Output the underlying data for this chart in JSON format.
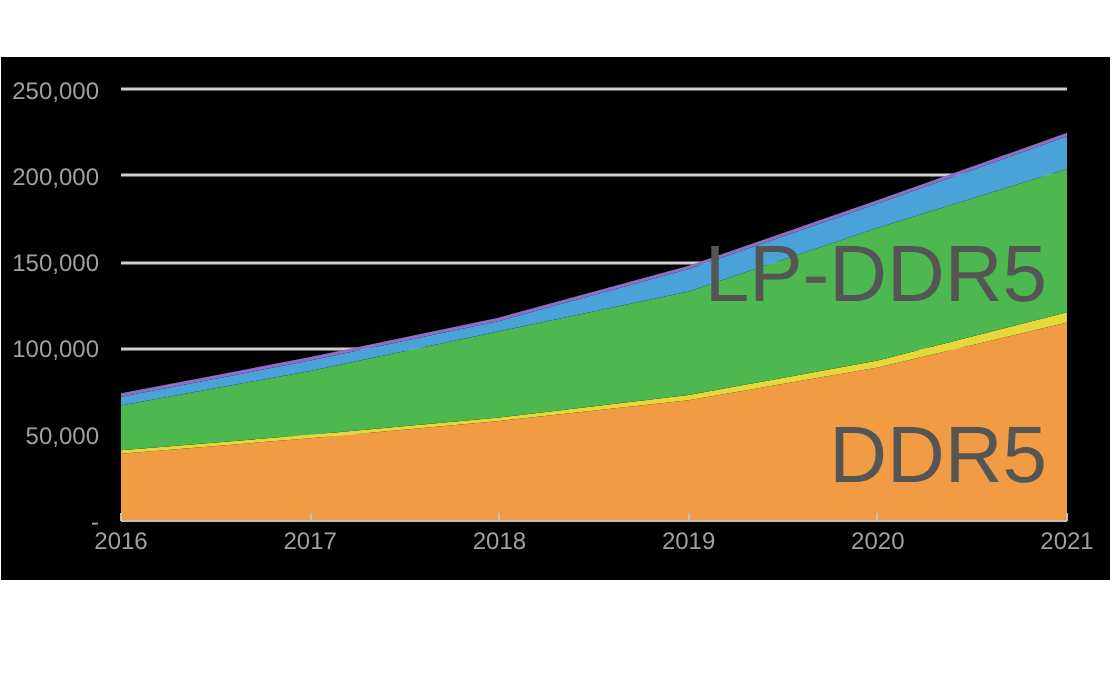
{
  "chart_data": {
    "type": "area",
    "stacked": true,
    "x": [
      2016,
      2017,
      2018,
      2019,
      2020,
      2021
    ],
    "series": [
      {
        "name": "DDR5",
        "color": "#f29b45",
        "values": [
          39000,
          48000,
          58000,
          70000,
          89000,
          115000
        ]
      },
      {
        "color": "#e6d83a",
        "values": [
          2000,
          2000,
          2000,
          3000,
          4000,
          6000
        ]
      },
      {
        "name": "LP-DDR5",
        "color": "#4cb84f",
        "values": [
          26000,
          37000,
          50000,
          60000,
          77000,
          83000
        ]
      },
      {
        "color": "#4aa3d8",
        "values": [
          5000,
          6000,
          6000,
          13000,
          14000,
          19000
        ]
      },
      {
        "color": "#8e6fc4",
        "values": [
          2000,
          2000,
          2000,
          2000,
          2000,
          2000
        ]
      }
    ],
    "xlim": [
      2016,
      2021
    ],
    "xticks": [
      2016,
      2017,
      2018,
      2019,
      2020,
      2021
    ],
    "ylim": [
      0,
      262000
    ],
    "yticks": [
      {
        "value": 0,
        "label": "-"
      },
      {
        "value": 50000,
        "label": "50,000"
      },
      {
        "value": 100000,
        "label": "100,000"
      },
      {
        "value": 150000,
        "label": "150,000"
      },
      {
        "value": 200000,
        "label": "200,000"
      },
      {
        "value": 250000,
        "label": "250,000"
      }
    ],
    "grid": "y"
  }
}
